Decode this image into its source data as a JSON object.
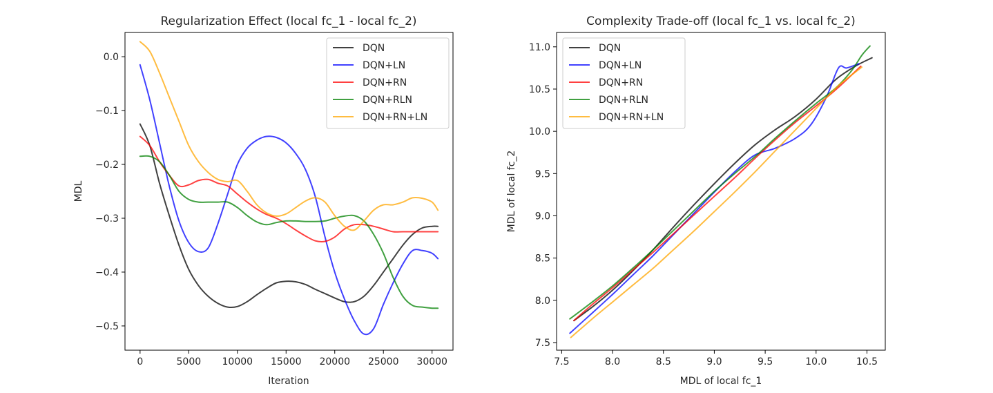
{
  "chart_data": [
    {
      "type": "line",
      "title": "Regularization Effect (local fc_1 - local fc_2)",
      "xlabel": "Iteration",
      "ylabel": "MDL",
      "xlim": [
        -1550,
        32150
      ],
      "ylim": [
        -0.545,
        0.045
      ],
      "xticks": [
        0,
        5000,
        10000,
        15000,
        20000,
        25000,
        30000
      ],
      "xtick_labels": [
        "0",
        "5000",
        "10000",
        "15000",
        "20000",
        "25000",
        "30000"
      ],
      "yticks": [
        0.0,
        -0.1,
        -0.2,
        -0.3,
        -0.4,
        -0.5
      ],
      "ytick_labels": [
        "0.0",
        "−0.1",
        "−0.2",
        "−0.3",
        "−0.4",
        "−0.5"
      ],
      "grid": false,
      "legend": "top-right",
      "series": [
        {
          "name": "DQN",
          "color": "#000000",
          "x": [
            0,
            1000,
            2000,
            3000,
            4000,
            5000,
            6000,
            7000,
            8000,
            9000,
            10000,
            11000,
            12000,
            13000,
            14000,
            15000,
            16000,
            17000,
            18000,
            19000,
            20000,
            21000,
            22000,
            23000,
            24000,
            25000,
            26000,
            27000,
            28000,
            29000,
            30000,
            30600
          ],
          "y": [
            -0.125,
            -0.165,
            -0.235,
            -0.295,
            -0.35,
            -0.395,
            -0.425,
            -0.445,
            -0.458,
            -0.465,
            -0.464,
            -0.455,
            -0.442,
            -0.43,
            -0.42,
            -0.417,
            -0.418,
            -0.423,
            -0.432,
            -0.44,
            -0.448,
            -0.455,
            -0.455,
            -0.445,
            -0.425,
            -0.4,
            -0.375,
            -0.35,
            -0.33,
            -0.318,
            -0.315,
            -0.315
          ]
        },
        {
          "name": "DQN+LN",
          "color": "#0000ff",
          "x": [
            0,
            1000,
            2000,
            3000,
            4000,
            5000,
            6000,
            7000,
            8000,
            9000,
            10000,
            11000,
            12000,
            13000,
            14000,
            15000,
            16000,
            17000,
            18000,
            19000,
            20000,
            21000,
            22000,
            23000,
            24000,
            25000,
            26000,
            27000,
            28000,
            29000,
            30000,
            30600
          ],
          "y": [
            -0.015,
            -0.08,
            -0.16,
            -0.24,
            -0.305,
            -0.345,
            -0.362,
            -0.355,
            -0.31,
            -0.255,
            -0.2,
            -0.17,
            -0.155,
            -0.148,
            -0.15,
            -0.16,
            -0.18,
            -0.21,
            -0.26,
            -0.335,
            -0.4,
            -0.45,
            -0.49,
            -0.515,
            -0.505,
            -0.46,
            -0.42,
            -0.385,
            -0.36,
            -0.36,
            -0.365,
            -0.375
          ]
        },
        {
          "name": "DQN+RN",
          "color": "#ff0000",
          "x": [
            0,
            1000,
            2000,
            3000,
            4000,
            5000,
            6000,
            7000,
            8000,
            9000,
            10000,
            11000,
            12000,
            13000,
            14000,
            15000,
            16000,
            17000,
            18000,
            19000,
            20000,
            21000,
            22000,
            23000,
            24000,
            25000,
            26000,
            27000,
            28000,
            29000,
            30000,
            30600
          ],
          "y": [
            -0.148,
            -0.165,
            -0.195,
            -0.22,
            -0.24,
            -0.238,
            -0.23,
            -0.228,
            -0.235,
            -0.24,
            -0.255,
            -0.27,
            -0.283,
            -0.293,
            -0.3,
            -0.31,
            -0.322,
            -0.333,
            -0.342,
            -0.343,
            -0.335,
            -0.32,
            -0.312,
            -0.312,
            -0.315,
            -0.32,
            -0.325,
            -0.325,
            -0.325,
            -0.325,
            -0.325,
            -0.325
          ]
        },
        {
          "name": "DQN+RLN",
          "color": "#008000",
          "x": [
            0,
            1000,
            2000,
            3000,
            4000,
            5000,
            6000,
            7000,
            8000,
            9000,
            10000,
            11000,
            12000,
            13000,
            14000,
            15000,
            16000,
            17000,
            18000,
            19000,
            20000,
            21000,
            22000,
            23000,
            24000,
            25000,
            26000,
            27000,
            28000,
            29000,
            30000,
            30600
          ],
          "y": [
            -0.185,
            -0.185,
            -0.195,
            -0.22,
            -0.25,
            -0.265,
            -0.27,
            -0.27,
            -0.27,
            -0.27,
            -0.28,
            -0.295,
            -0.307,
            -0.312,
            -0.308,
            -0.305,
            -0.305,
            -0.306,
            -0.306,
            -0.305,
            -0.3,
            -0.296,
            -0.295,
            -0.305,
            -0.33,
            -0.365,
            -0.41,
            -0.445,
            -0.462,
            -0.465,
            -0.467,
            -0.467
          ]
        },
        {
          "name": "DQN+RN+LN",
          "color": "#ffa500",
          "x": [
            0,
            1000,
            2000,
            3000,
            4000,
            5000,
            6000,
            7000,
            8000,
            9000,
            10000,
            11000,
            12000,
            13000,
            14000,
            15000,
            16000,
            17000,
            18000,
            19000,
            20000,
            21000,
            22000,
            23000,
            24000,
            25000,
            26000,
            27000,
            28000,
            29000,
            30000,
            30600
          ],
          "y": [
            0.028,
            0.01,
            -0.03,
            -0.075,
            -0.12,
            -0.165,
            -0.195,
            -0.215,
            -0.228,
            -0.232,
            -0.23,
            -0.25,
            -0.275,
            -0.29,
            -0.296,
            -0.292,
            -0.28,
            -0.268,
            -0.262,
            -0.27,
            -0.295,
            -0.315,
            -0.322,
            -0.305,
            -0.285,
            -0.275,
            -0.275,
            -0.27,
            -0.262,
            -0.263,
            -0.27,
            -0.285
          ]
        }
      ]
    },
    {
      "type": "line",
      "title": "Complexity Trade-off (local fc_1 vs. local fc_2)",
      "xlabel": "MDL of local fc_1",
      "ylabel": "MDL of local fc_2",
      "xlim": [
        7.45,
        10.68
      ],
      "ylim": [
        7.41,
        11.17
      ],
      "xticks": [
        7.5,
        8.0,
        8.5,
        9.0,
        9.5,
        10.0,
        10.5
      ],
      "xtick_labels": [
        "7.5",
        "8.0",
        "8.5",
        "9.0",
        "9.5",
        "10.0",
        "10.5"
      ],
      "yticks": [
        7.5,
        8.0,
        8.5,
        9.0,
        9.5,
        10.0,
        10.5,
        11.0
      ],
      "ytick_labels": [
        "7.5",
        "8.0",
        "8.5",
        "9.0",
        "9.5",
        "10.0",
        "10.5",
        "11.0"
      ],
      "grid": false,
      "legend": "top-left",
      "series": [
        {
          "name": "DQN",
          "color": "#000000",
          "x": [
            7.62,
            7.8,
            8.0,
            8.2,
            8.4,
            8.6,
            8.8,
            9.0,
            9.2,
            9.4,
            9.6,
            9.8,
            10.0,
            10.2,
            10.4,
            10.55
          ],
          "y": [
            7.76,
            7.92,
            8.12,
            8.35,
            8.6,
            8.87,
            9.13,
            9.38,
            9.62,
            9.84,
            10.02,
            10.18,
            10.38,
            10.62,
            10.78,
            10.87
          ]
        },
        {
          "name": "DQN+LN",
          "color": "#0000ff",
          "x": [
            7.58,
            7.8,
            8.0,
            8.2,
            8.4,
            8.6,
            8.8,
            9.0,
            9.2,
            9.4,
            9.6,
            9.8,
            9.95,
            10.1,
            10.22,
            10.3,
            10.42
          ],
          "y": [
            7.61,
            7.85,
            8.07,
            8.3,
            8.53,
            8.78,
            9.03,
            9.28,
            9.52,
            9.72,
            9.8,
            9.92,
            10.08,
            10.4,
            10.75,
            10.75,
            10.8
          ]
        },
        {
          "name": "DQN+RN",
          "color": "#ff0000",
          "x": [
            7.62,
            7.8,
            8.0,
            8.2,
            8.4,
            8.6,
            8.8,
            9.0,
            9.2,
            9.4,
            9.6,
            9.8,
            10.0,
            10.2,
            10.44
          ],
          "y": [
            7.76,
            7.95,
            8.15,
            8.36,
            8.57,
            8.79,
            9.01,
            9.23,
            9.45,
            9.68,
            9.9,
            10.11,
            10.3,
            10.5,
            10.77
          ]
        },
        {
          "name": "DQN+RLN",
          "color": "#008000",
          "x": [
            7.58,
            7.8,
            8.0,
            8.2,
            8.4,
            8.6,
            8.8,
            9.0,
            9.2,
            9.4,
            9.6,
            9.8,
            10.0,
            10.2,
            10.35,
            10.45,
            10.53
          ],
          "y": [
            7.78,
            7.98,
            8.17,
            8.38,
            8.6,
            8.83,
            9.06,
            9.29,
            9.5,
            9.7,
            9.92,
            10.13,
            10.33,
            10.52,
            10.72,
            10.9,
            11.01
          ]
        },
        {
          "name": "DQN+RN+LN",
          "color": "#ffa500",
          "x": [
            7.59,
            7.8,
            8.0,
            8.2,
            8.4,
            8.6,
            8.8,
            9.0,
            9.2,
            9.4,
            9.6,
            9.8,
            10.0,
            10.2,
            10.3,
            10.45
          ],
          "y": [
            7.56,
            7.78,
            7.98,
            8.18,
            8.38,
            8.6,
            8.82,
            9.05,
            9.28,
            9.52,
            9.77,
            10.02,
            10.27,
            10.52,
            10.62,
            10.76
          ]
        }
      ]
    }
  ]
}
